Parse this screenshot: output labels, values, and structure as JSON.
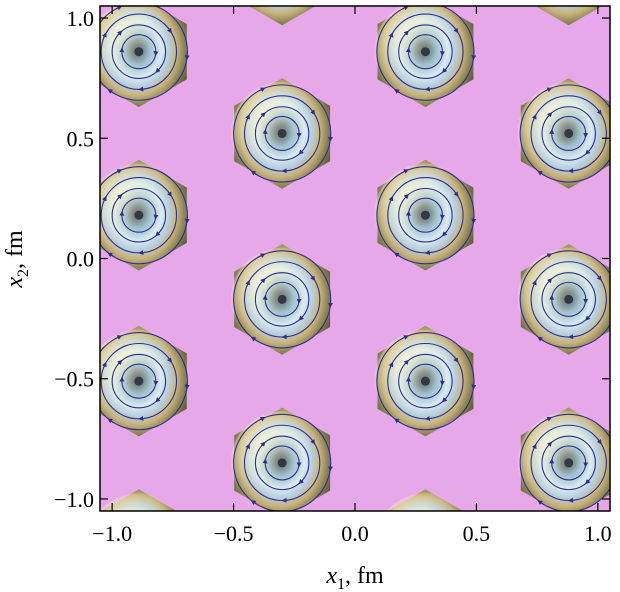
{
  "chart_data": {
    "type": "heatmap",
    "title": "",
    "xlabel": "x₁, fm",
    "ylabel": "x₂, fm",
    "xlabel_var": "x",
    "xlabel_sub": "1",
    "xlabel_unit": ", fm",
    "ylabel_var": "x",
    "ylabel_sub": "2",
    "ylabel_unit": ", fm",
    "xlim": [
      -1.05,
      1.05
    ],
    "ylim": [
      -1.05,
      1.05
    ],
    "x_ticks": [
      -1.0,
      -0.5,
      0.0,
      0.5,
      1.0
    ],
    "y_ticks": [
      -1.0,
      -0.5,
      0.0,
      0.5,
      1.0
    ],
    "x_tick_labels": [
      "−1.0",
      "−0.5",
      "0.0",
      "0.5",
      "1.0"
    ],
    "y_tick_labels": [
      "−1.0",
      "−0.5",
      "0.0",
      "0.5",
      "1.0"
    ],
    "grid": false,
    "legend": "none",
    "overlay": "streamlines",
    "vortex_centers": [
      {
        "x": -0.89,
        "y": 0.86
      },
      {
        "x": 0.29,
        "y": 0.86
      },
      {
        "x": -0.3,
        "y": 0.52
      },
      {
        "x": 0.88,
        "y": 0.52
      },
      {
        "x": -0.89,
        "y": 0.18
      },
      {
        "x": 0.29,
        "y": 0.18
      },
      {
        "x": -0.3,
        "y": -0.17
      },
      {
        "x": 0.88,
        "y": -0.17
      },
      {
        "x": -0.89,
        "y": -0.51
      },
      {
        "x": 0.29,
        "y": -0.51
      },
      {
        "x": -0.3,
        "y": -0.85
      },
      {
        "x": 0.88,
        "y": -0.85
      }
    ],
    "hex_cell_centers": [
      {
        "x": -0.3,
        "y": 1.2
      },
      {
        "x": 0.88,
        "y": 1.2
      },
      {
        "x": -0.89,
        "y": 0.86
      },
      {
        "x": 0.29,
        "y": 0.86
      },
      {
        "x": -0.3,
        "y": 0.52
      },
      {
        "x": 0.88,
        "y": 0.52
      },
      {
        "x": -0.89,
        "y": 0.18
      },
      {
        "x": 0.29,
        "y": 0.18
      },
      {
        "x": -0.3,
        "y": -0.17
      },
      {
        "x": 0.88,
        "y": -0.17
      },
      {
        "x": -0.89,
        "y": -0.51
      },
      {
        "x": 0.29,
        "y": -0.51
      },
      {
        "x": -0.3,
        "y": -0.85
      },
      {
        "x": 0.88,
        "y": -0.85
      },
      {
        "x": -0.89,
        "y": -1.19
      },
      {
        "x": 0.29,
        "y": -1.19
      }
    ],
    "ring_radii": [
      0.07,
      0.11,
      0.155,
      0.2
    ],
    "colors": {
      "core": "#2f3a45",
      "inner": "#8fb6cf",
      "ring": "#d9ebf2",
      "outer": "#c9b37a",
      "edge": "#6b6640",
      "boundary": "#e6a8e8",
      "stream": "#2e2e8c"
    }
  }
}
